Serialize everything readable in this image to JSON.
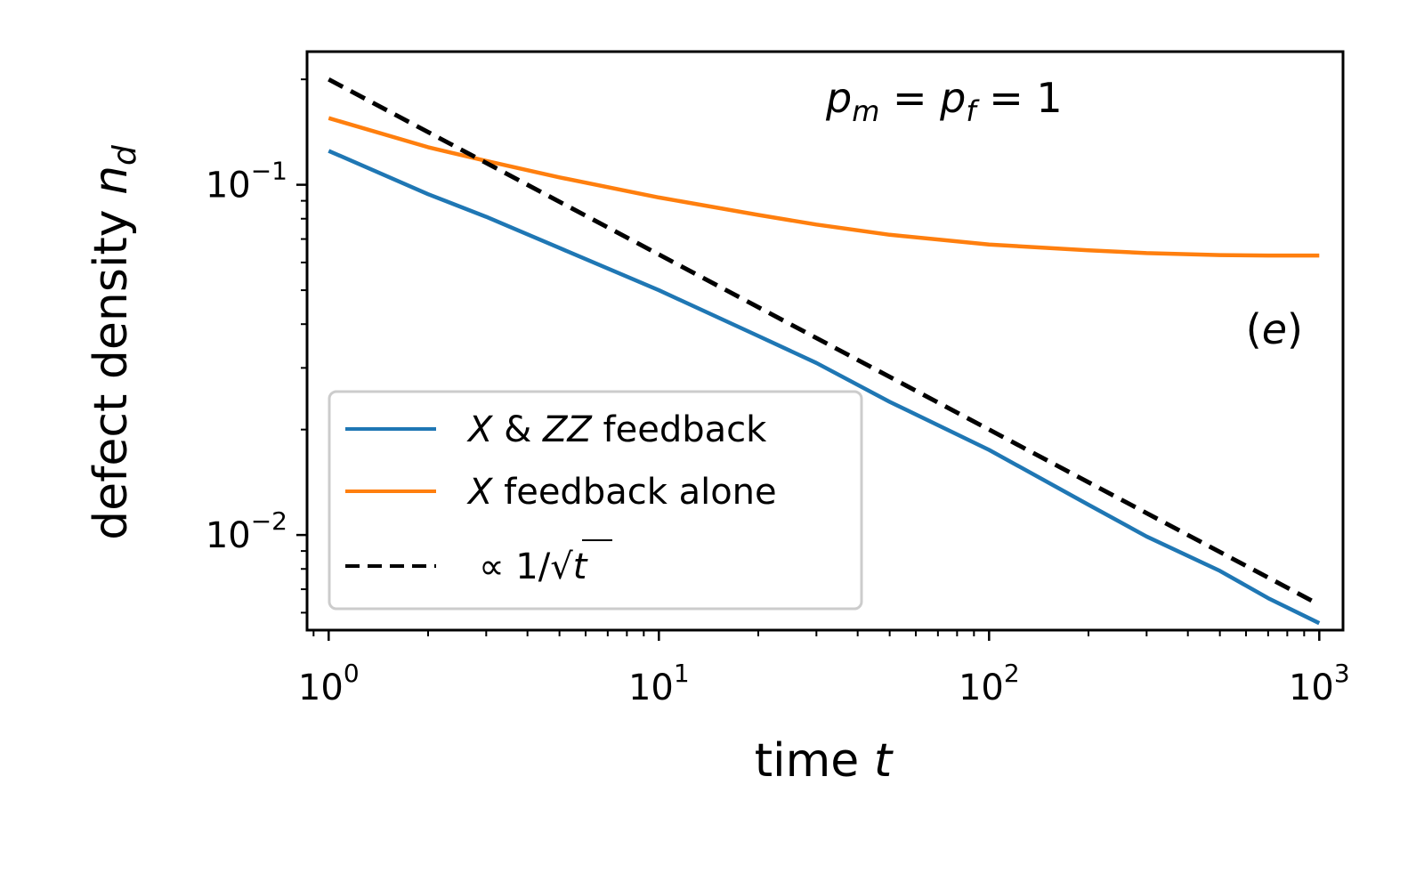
{
  "chart_data": {
    "type": "line",
    "title": "",
    "xlabel": "time",
    "xlabel_var": "t",
    "ylabel": "defect density",
    "ylabel_var": "n",
    "ylabel_sub": "d",
    "xscale": "log",
    "yscale": "log",
    "xlim": [
      0.86,
      1180
    ],
    "ylim": [
      0.00535,
      0.24
    ],
    "x_ticks": [
      {
        "value": 1,
        "base": "10",
        "exp": "0"
      },
      {
        "value": 10,
        "base": "10",
        "exp": "1"
      },
      {
        "value": 100,
        "base": "10",
        "exp": "2"
      },
      {
        "value": 1000,
        "base": "10",
        "exp": "3"
      }
    ],
    "y_ticks": [
      {
        "value": 0.1,
        "base": "10",
        "exp": "−1"
      },
      {
        "value": 0.01,
        "base": "10",
        "exp": "−2"
      }
    ],
    "grid": false,
    "legend_position": "lower-left",
    "series": [
      {
        "name": "X & ZZ feedback",
        "legend_parts": [
          "X",
          " & ",
          "ZZ",
          " feedback"
        ],
        "color": "#1f77b4",
        "style": "solid",
        "x": [
          1,
          2,
          3,
          5,
          10,
          20,
          30,
          50,
          100,
          200,
          300,
          500,
          700,
          1000
        ],
        "y": [
          0.125,
          0.094,
          0.081,
          0.066,
          0.05,
          0.037,
          0.031,
          0.024,
          0.0175,
          0.0122,
          0.0099,
          0.0079,
          0.0066,
          0.0056
        ]
      },
      {
        "name": "X feedback alone",
        "legend_parts": [
          "X",
          " feedback alone"
        ],
        "color": "#ff7f0e",
        "style": "solid",
        "x": [
          1,
          2,
          3,
          5,
          10,
          20,
          30,
          50,
          100,
          200,
          300,
          500,
          700,
          1000
        ],
        "y": [
          0.155,
          0.128,
          0.117,
          0.105,
          0.092,
          0.082,
          0.077,
          0.072,
          0.0675,
          0.065,
          0.0638,
          0.063,
          0.0628,
          0.0628
        ]
      },
      {
        "name": "∝ 1/√t",
        "legend_parts": [
          "∝ 1/√",
          "t"
        ],
        "color": "#000000",
        "style": "dashed",
        "x": [
          1,
          1000
        ],
        "y": [
          0.2,
          0.006325
        ]
      }
    ],
    "annotations": [
      {
        "id": "params",
        "parts": [
          "p",
          "m",
          " = ",
          "p",
          "f",
          " = 1"
        ]
      },
      {
        "id": "panel",
        "parts": [
          "(",
          "e",
          ")"
        ]
      }
    ]
  }
}
